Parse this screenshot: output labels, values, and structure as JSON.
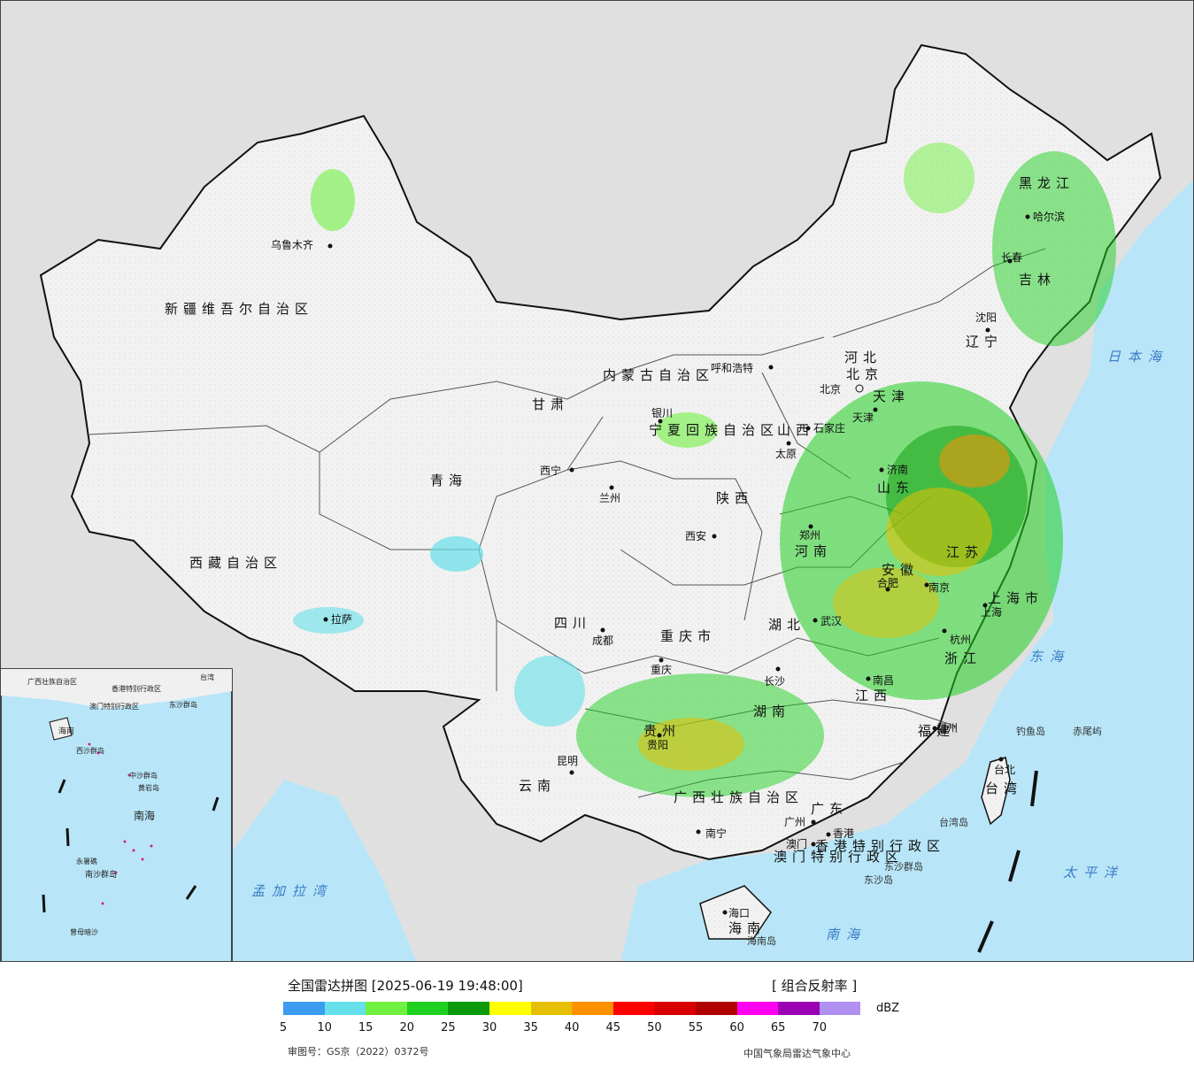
{
  "legend": {
    "title": "全国雷达拼图 [2025-06-19 19:48:00]",
    "product": "[ 组合反射率 ]",
    "unit": "dBZ",
    "approval": "审图号：GS京（2022）0372号",
    "source": "中国气象局雷达气象中心",
    "colors": [
      "#3b9cf0",
      "#66e0ea",
      "#70f040",
      "#20d020",
      "#0a9a0a",
      "#ffff00",
      "#e6c000",
      "#ff9000",
      "#ff0000",
      "#d80000",
      "#b00000",
      "#ff00f0",
      "#9a00b4",
      "#b090f0"
    ],
    "ticks": [
      "5",
      "10",
      "15",
      "20",
      "25",
      "30",
      "35",
      "40",
      "45",
      "50",
      "55",
      "60",
      "65",
      "70"
    ]
  },
  "map": {
    "colors": {
      "ocean": "#b8e6f8",
      "land": "#f0f0f0",
      "outside": "#e0e0e0",
      "border": "#111111"
    },
    "provinces": [
      {
        "name": "新疆维吾尔自治区"
      },
      {
        "name": "西藏自治区"
      },
      {
        "name": "青海"
      },
      {
        "name": "甘肃"
      },
      {
        "name": "内蒙古自治区"
      },
      {
        "name": "四川"
      },
      {
        "name": "云南"
      },
      {
        "name": "陕西"
      },
      {
        "name": "山西"
      },
      {
        "name": "河北"
      },
      {
        "name": "山东"
      },
      {
        "name": "河南"
      },
      {
        "name": "湖北"
      },
      {
        "name": "湖南"
      },
      {
        "name": "贵州"
      },
      {
        "name": "江西"
      },
      {
        "name": "福建"
      },
      {
        "name": "浙江"
      },
      {
        "name": "江苏"
      },
      {
        "name": "安徽"
      },
      {
        "name": "广东"
      },
      {
        "name": "广西壮族自治区"
      },
      {
        "name": "海南"
      },
      {
        "name": "辽宁"
      },
      {
        "name": "吉林"
      },
      {
        "name": "黑龙江"
      },
      {
        "name": "宁夏回族自治区"
      },
      {
        "name": "重庆市"
      },
      {
        "name": "上海市"
      },
      {
        "name": "天津"
      },
      {
        "name": "北京"
      },
      {
        "name": "台湾"
      },
      {
        "name": "香港特别行政区"
      },
      {
        "name": "澳门特别行政区"
      }
    ],
    "cities": [
      "乌鲁木齐",
      "拉萨",
      "西宁",
      "兰州",
      "银川",
      "呼和浩特",
      "北京",
      "天津",
      "石家庄",
      "太原",
      "济南",
      "郑州",
      "西安",
      "成都",
      "重庆",
      "贵阳",
      "昆明",
      "南宁",
      "长沙",
      "武汉",
      "合肥",
      "南京",
      "上海",
      "杭州",
      "南昌",
      "福州",
      "台北",
      "广州",
      "澳门",
      "香港",
      "海口",
      "沈阳",
      "长春",
      "哈尔滨"
    ],
    "seas": [
      "日本海",
      "东海",
      "太平洋",
      "南海",
      "孟加拉湾"
    ],
    "islands": [
      "钓鱼岛",
      "赤尾屿",
      "台湾岛",
      "海南岛",
      "东沙群岛",
      "东沙岛"
    ],
    "inset": {
      "labels": [
        "南海",
        "永暑礁",
        "南沙群岛",
        "曾母暗沙",
        "西沙群岛",
        "中沙群岛",
        "黄岩岛",
        "海南",
        "广西壮族自治区",
        "香港特别行政区",
        "澳门特别行政区",
        "台湾",
        "东沙群岛"
      ]
    }
  }
}
